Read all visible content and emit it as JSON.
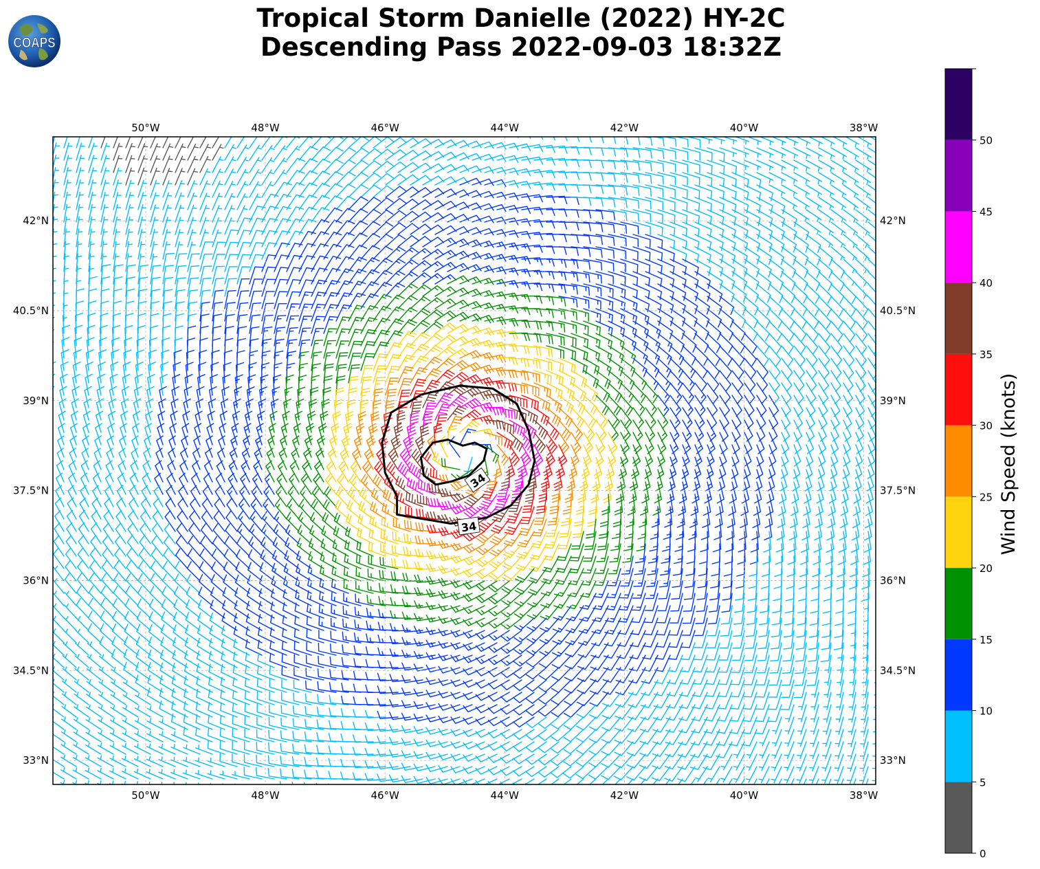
{
  "header": {
    "title_line1": "Tropical Storm Danielle (2022) HY-2C",
    "title_line2": "Descending Pass 2022-09-03 18:32Z",
    "logo_text": "COAPS"
  },
  "map": {
    "lon_range": [
      -51.55,
      -37.8
    ],
    "lat_range": [
      32.6,
      43.4
    ],
    "lon_ticks": [
      {
        "value": -50,
        "label": "50°W"
      },
      {
        "value": -48,
        "label": "48°W"
      },
      {
        "value": -46,
        "label": "46°W"
      },
      {
        "value": -44,
        "label": "44°W"
      },
      {
        "value": -42,
        "label": "42°W"
      },
      {
        "value": -40,
        "label": "40°W"
      },
      {
        "value": -38,
        "label": "38°W"
      }
    ],
    "lat_ticks": [
      {
        "value": 42,
        "label": "42°N"
      },
      {
        "value": 40.5,
        "label": "40.5°N"
      },
      {
        "value": 39,
        "label": "39°N"
      },
      {
        "value": 37.5,
        "label": "37.5°N"
      },
      {
        "value": 36,
        "label": "36°N"
      },
      {
        "value": 34.5,
        "label": "34.5°N"
      },
      {
        "value": 33,
        "label": "33°N"
      }
    ],
    "gridlines": true,
    "storm_center": {
      "lon": -44.6,
      "lat": 38.1
    },
    "contour_label": "34",
    "contour_34kt_outer": [
      [
        -45.5,
        37.05
      ],
      [
        -44.9,
        36.95
      ],
      [
        -44.3,
        37.05
      ],
      [
        -43.9,
        37.25
      ],
      [
        -43.6,
        37.6
      ],
      [
        -43.5,
        38.0
      ],
      [
        -43.6,
        38.5
      ],
      [
        -43.8,
        38.95
      ],
      [
        -44.2,
        39.2
      ],
      [
        -44.75,
        39.25
      ],
      [
        -45.4,
        39.1
      ],
      [
        -45.9,
        38.8
      ],
      [
        -46.05,
        38.3
      ],
      [
        -46.0,
        37.8
      ],
      [
        -45.8,
        37.4
      ],
      [
        -45.8,
        37.1
      ],
      [
        -45.5,
        37.05
      ]
    ],
    "contour_34kt_inner": [
      [
        -44.9,
        37.65
      ],
      [
        -44.6,
        37.75
      ],
      [
        -44.35,
        38.0
      ],
      [
        -44.3,
        38.2
      ],
      [
        -44.5,
        38.3
      ],
      [
        -44.7,
        38.25
      ],
      [
        -44.95,
        38.35
      ],
      [
        -45.2,
        38.3
      ],
      [
        -45.4,
        38.05
      ],
      [
        -45.35,
        37.75
      ],
      [
        -45.15,
        37.6
      ],
      [
        -44.9,
        37.65
      ]
    ]
  },
  "colorbar": {
    "label": "Wind Speed (knots)",
    "bins": [
      {
        "min": 0,
        "max": 5,
        "color": "#595959"
      },
      {
        "min": 5,
        "max": 10,
        "color": "#00bfff"
      },
      {
        "min": 10,
        "max": 15,
        "color": "#0038ff"
      },
      {
        "min": 15,
        "max": 20,
        "color": "#009100"
      },
      {
        "min": 20,
        "max": 25,
        "color": "#ffd40e"
      },
      {
        "min": 25,
        "max": 30,
        "color": "#ff8c00"
      },
      {
        "min": 30,
        "max": 35,
        "color": "#ff0e0e"
      },
      {
        "min": 35,
        "max": 40,
        "color": "#803c28"
      },
      {
        "min": 40,
        "max": 45,
        "color": "#ff00ff"
      },
      {
        "min": 45,
        "max": 50,
        "color": "#8700ba"
      },
      {
        "min": 50,
        "max": 55,
        "color": "#2d0063"
      }
    ],
    "tick_labels": [
      "0",
      "5",
      "10",
      "15",
      "20",
      "25",
      "30",
      "35",
      "40",
      "45",
      "50"
    ]
  }
}
